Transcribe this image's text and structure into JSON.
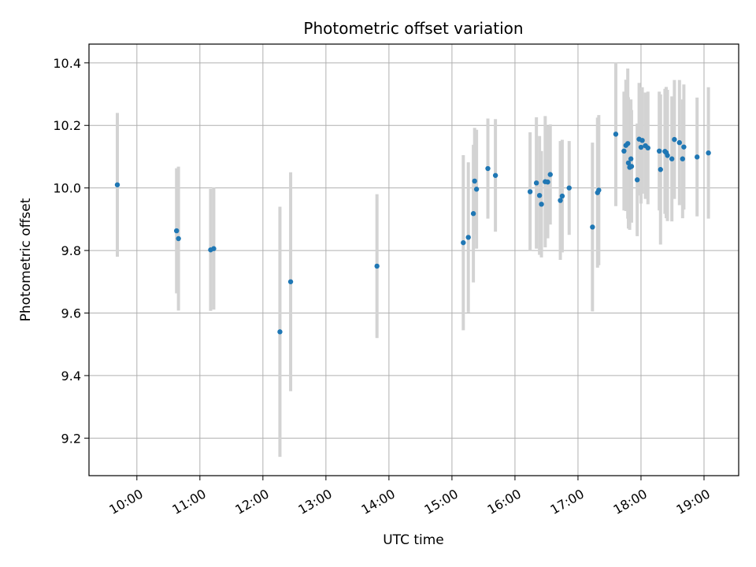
{
  "chart_data": {
    "type": "scatter",
    "title": "Photometric offset variation",
    "xlabel": "UTC time",
    "ylabel": "Photometric offset",
    "x_unit": "UTC hour (decimal)",
    "xlim": [
      9.24,
      19.55
    ],
    "ylim": [
      9.08,
      10.46
    ],
    "x_ticks": [
      10,
      11,
      12,
      13,
      14,
      15,
      16,
      17,
      18,
      19
    ],
    "x_tick_labels": [
      "10:00",
      "11:00",
      "12:00",
      "13:00",
      "14:00",
      "15:00",
      "16:00",
      "17:00",
      "18:00",
      "19:00"
    ],
    "y_ticks": [
      9.2,
      9.4,
      9.6,
      9.8,
      10.0,
      10.2,
      10.4
    ],
    "y_tick_labels": [
      "9.2",
      "9.4",
      "9.6",
      "9.8",
      "10.0",
      "10.2",
      "10.4"
    ],
    "grid": true,
    "colors": {
      "point": "#1f77b4",
      "errorbar": "#d3d3d3",
      "grid": "#b0b0b0"
    },
    "series": [
      {
        "x": [
          9.69,
          10.63,
          10.66,
          11.17,
          11.22,
          12.27,
          12.44,
          13.81,
          15.18,
          15.26,
          15.34,
          15.36,
          15.39,
          15.57,
          15.69,
          16.24,
          16.34,
          16.39,
          16.42,
          16.48,
          16.52,
          16.56,
          16.72,
          16.75,
          16.86,
          17.23,
          17.31,
          17.33,
          17.6,
          17.73,
          17.76,
          17.79,
          17.8,
          17.82,
          17.84,
          17.85,
          17.94,
          17.97,
          18.0,
          18.02,
          18.07,
          18.11,
          18.29,
          18.31,
          18.38,
          18.4,
          18.42,
          18.49,
          18.53,
          18.61,
          18.66,
          18.68,
          18.89,
          19.07
        ],
        "y": [
          10.01,
          9.863,
          9.838,
          9.802,
          9.806,
          9.54,
          9.7,
          9.75,
          9.825,
          9.842,
          9.918,
          10.022,
          9.996,
          10.062,
          10.04,
          9.988,
          10.016,
          9.976,
          9.948,
          10.02,
          10.019,
          10.043,
          9.96,
          9.974,
          10.0,
          9.875,
          9.985,
          9.993,
          10.172,
          10.118,
          10.136,
          10.142,
          10.08,
          10.066,
          10.093,
          10.069,
          10.026,
          10.156,
          10.13,
          10.152,
          10.135,
          10.128,
          10.118,
          10.059,
          10.117,
          10.113,
          10.104,
          10.093,
          10.155,
          10.145,
          10.093,
          10.131,
          10.099,
          10.112
        ],
        "err": [
          0.23,
          0.2,
          0.23,
          0.195,
          0.195,
          0.4,
          0.35,
          0.23,
          0.28,
          0.24,
          0.22,
          0.17,
          0.19,
          0.16,
          0.18,
          0.19,
          0.21,
          0.19,
          0.17,
          0.21,
          0.18,
          0.16,
          0.19,
          0.18,
          0.15,
          0.27,
          0.24,
          0.24,
          0.23,
          0.19,
          0.21,
          0.24,
          0.21,
          0.2,
          0.19,
          0.18,
          0.18,
          0.18,
          0.18,
          0.17,
          0.17,
          0.18,
          0.19,
          0.24,
          0.2,
          0.21,
          0.21,
          0.2,
          0.19,
          0.2,
          0.19,
          0.2,
          0.19,
          0.21
        ]
      }
    ]
  }
}
